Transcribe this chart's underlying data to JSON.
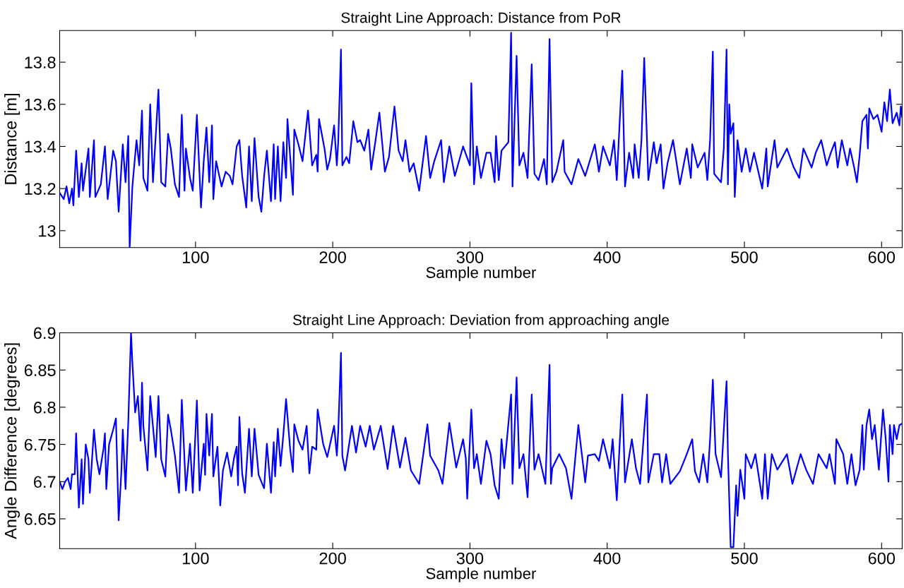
{
  "chart_data": [
    {
      "type": "line",
      "title": "Straight Line Approach: Distance from PoR",
      "xlabel": "Sample number",
      "ylabel": "Distance [m]",
      "xlim": [
        1,
        615
      ],
      "ylim": [
        12.92,
        13.95
      ],
      "xticks": [
        100,
        200,
        300,
        400,
        500,
        600
      ],
      "yticks": [
        13,
        13.2,
        13.4,
        13.6,
        13.8
      ],
      "grid": false,
      "marker": "none",
      "line_style": "solid",
      "series": [
        {
          "color": "#0000ff",
          "x": [
            1,
            4,
            6,
            8,
            10,
            11,
            13,
            15,
            17,
            18,
            22,
            23,
            26,
            27,
            31,
            34,
            36,
            40,
            42,
            44,
            47,
            49,
            51,
            52,
            54,
            57,
            59,
            61,
            62,
            65,
            67,
            69,
            73,
            75,
            78,
            80,
            82,
            85,
            88,
            90,
            92,
            93,
            96,
            98,
            101,
            104,
            106,
            108,
            110,
            112,
            113,
            115,
            119,
            122,
            125,
            127,
            130,
            132,
            134,
            137,
            139,
            141,
            143,
            146,
            148,
            150,
            152,
            155,
            157,
            158,
            160,
            162,
            164,
            166,
            167,
            169,
            171,
            172,
            175,
            178,
            182,
            185,
            188,
            189,
            190,
            194,
            196,
            198,
            201,
            203,
            204,
            206,
            207,
            210,
            212,
            215,
            218,
            220,
            223,
            226,
            228,
            231,
            234,
            236,
            238,
            241,
            245,
            248,
            251,
            253,
            256,
            259,
            263,
            268,
            271,
            274,
            279,
            281,
            285,
            289,
            295,
            300,
            301,
            303,
            305,
            308,
            312,
            315,
            318,
            319,
            321,
            323,
            328,
            330,
            331,
            334,
            336,
            339,
            342,
            345,
            347,
            350,
            354,
            356,
            358,
            360,
            363,
            368,
            369,
            374,
            379,
            384,
            391,
            394,
            397,
            402,
            405,
            407,
            411,
            413,
            416,
            419,
            420,
            423,
            425,
            427,
            430,
            434,
            436,
            439,
            441,
            444,
            448,
            453,
            458,
            461,
            462,
            466,
            471,
            473,
            475,
            477,
            478,
            483,
            485,
            487,
            488,
            489,
            490,
            492,
            493,
            495,
            498,
            501,
            504,
            507,
            513,
            516,
            517,
            522,
            524,
            531,
            536,
            540,
            543,
            549,
            552,
            556,
            560,
            563,
            566,
            568,
            571,
            575,
            577,
            580,
            582,
            584,
            586,
            589,
            590,
            591,
            594,
            597,
            600,
            602,
            604,
            606,
            608,
            611,
            613,
            614,
            615
          ],
          "values": [
            13.18,
            13.15,
            13.21,
            13.13,
            13.2,
            13.12,
            13.38,
            13.16,
            13.32,
            13.19,
            13.39,
            13.16,
            13.43,
            13.16,
            13.22,
            13.4,
            13.15,
            13.38,
            13.33,
            13.09,
            13.41,
            13.23,
            13.45,
            12.92,
            13.21,
            13.43,
            13.31,
            13.57,
            13.25,
            13.19,
            13.6,
            13.23,
            13.67,
            13.23,
            13.21,
            13.46,
            13.39,
            13.22,
            13.16,
            13.55,
            13.19,
            13.39,
            13.25,
            13.19,
            13.55,
            13.11,
            13.33,
            13.49,
            13.23,
            13.5,
            13.15,
            13.33,
            13.21,
            13.28,
            13.26,
            13.22,
            13.4,
            13.43,
            13.26,
            13.11,
            13.4,
            13.14,
            13.44,
            13.16,
            13.09,
            13.26,
            13.38,
            13.14,
            13.41,
            13.15,
            13.4,
            13.14,
            13.42,
            13.25,
            13.53,
            13.35,
            13.17,
            13.48,
            13.41,
            13.33,
            13.57,
            13.31,
            13.36,
            13.28,
            13.53,
            13.39,
            13.29,
            13.34,
            13.5,
            13.31,
            13.42,
            13.86,
            13.31,
            13.35,
            13.32,
            13.52,
            13.42,
            13.43,
            13.38,
            13.48,
            13.29,
            13.42,
            13.56,
            13.42,
            13.28,
            13.35,
            13.59,
            13.38,
            13.33,
            13.43,
            13.28,
            13.32,
            13.19,
            13.45,
            13.25,
            13.33,
            13.43,
            13.23,
            13.4,
            13.26,
            13.4,
            13.31,
            13.7,
            13.22,
            13.4,
            13.25,
            13.37,
            13.37,
            13.23,
            13.45,
            13.24,
            13.38,
            13.42,
            13.94,
            13.21,
            13.83,
            13.31,
            13.37,
            13.25,
            13.79,
            13.27,
            13.24,
            13.34,
            13.22,
            13.91,
            13.23,
            13.28,
            13.43,
            13.28,
            13.22,
            13.34,
            13.26,
            13.41,
            13.28,
            13.4,
            13.31,
            13.43,
            13.24,
            13.76,
            13.21,
            13.37,
            13.25,
            13.41,
            13.25,
            13.43,
            13.82,
            13.24,
            13.42,
            13.32,
            13.41,
            13.2,
            13.32,
            13.43,
            13.22,
            13.39,
            13.25,
            13.41,
            13.3,
            13.37,
            13.24,
            13.43,
            13.85,
            13.27,
            13.23,
            13.39,
            13.86,
            13.22,
            13.6,
            13.46,
            13.51,
            13.16,
            13.43,
            13.28,
            13.39,
            13.28,
            13.37,
            13.2,
            13.39,
            13.21,
            13.43,
            13.3,
            13.39,
            13.3,
            13.25,
            13.39,
            13.3,
            13.37,
            13.43,
            13.31,
            13.37,
            13.42,
            13.3,
            13.43,
            13.31,
            13.39,
            13.3,
            13.23,
            13.36,
            13.52,
            13.55,
            13.39,
            13.58,
            13.53,
            13.55,
            13.47,
            13.61,
            13.52,
            13.67,
            13.51,
            13.56,
            13.5,
            13.59,
            13.54
          ]
        }
      ]
    },
    {
      "type": "line",
      "title": "Straight Line Approach: Deviation from approaching angle",
      "xlabel": "Sample number",
      "ylabel": "Angle Difference [degrees]",
      "xlim": [
        1,
        615
      ],
      "ylim": [
        6.61,
        6.9
      ],
      "xticks": [
        100,
        200,
        300,
        400,
        500,
        600
      ],
      "yticks": [
        6.65,
        6.7,
        6.75,
        6.8,
        6.85,
        6.9
      ],
      "grid": false,
      "marker": "none",
      "line_style": "solid",
      "series": [
        {
          "color": "#0000ff",
          "x": [
            1,
            3,
            5,
            7,
            9,
            10,
            12,
            13,
            15,
            17,
            18,
            20,
            22,
            23,
            26,
            28,
            30,
            33,
            34,
            35,
            37,
            40,
            42,
            44,
            46,
            47,
            49,
            51,
            53,
            54,
            56,
            58,
            60,
            61,
            62,
            65,
            67,
            71,
            73,
            75,
            78,
            80,
            82,
            85,
            88,
            90,
            93,
            96,
            98,
            101,
            103,
            106,
            107,
            108,
            110,
            112,
            113,
            116,
            118,
            120,
            123,
            126,
            128,
            130,
            131,
            132,
            134,
            136,
            139,
            141,
            143,
            146,
            150,
            152,
            155,
            157,
            158,
            160,
            162,
            164,
            166,
            169,
            171,
            172,
            175,
            178,
            181,
            183,
            185,
            188,
            189,
            193,
            196,
            201,
            203,
            204,
            206,
            207,
            209,
            214,
            217,
            220,
            224,
            227,
            230,
            235,
            240,
            244,
            249,
            253,
            257,
            263,
            269,
            271,
            277,
            280,
            285,
            290,
            295,
            297,
            298,
            300,
            301,
            303,
            305,
            308,
            312,
            315,
            318,
            321,
            323,
            325,
            330,
            331,
            334,
            336,
            339,
            342,
            345,
            347,
            350,
            355,
            358,
            359,
            360,
            365,
            370,
            374,
            379,
            384,
            386,
            391,
            394,
            397,
            402,
            404,
            407,
            411,
            413,
            418,
            421,
            424,
            429,
            430,
            434,
            438,
            440,
            443,
            446,
            453,
            458,
            462,
            464,
            467,
            470,
            473,
            475,
            477,
            479,
            483,
            484,
            487,
            488,
            490,
            492,
            494,
            495,
            497,
            500,
            501,
            505,
            508,
            513,
            515,
            517,
            520,
            524,
            531,
            535,
            541,
            545,
            550,
            554,
            560,
            562,
            566,
            567,
            572,
            575,
            578,
            581,
            584,
            586,
            587,
            589,
            591,
            593,
            595,
            598,
            601,
            603,
            605,
            606,
            608,
            609,
            611,
            613,
            615
          ],
          "values": [
            6.7,
            6.69,
            6.7,
            6.705,
            6.69,
            6.71,
            6.71,
            6.765,
            6.665,
            6.73,
            6.67,
            6.75,
            6.73,
            6.685,
            6.77,
            6.73,
            6.71,
            6.745,
            6.765,
            6.69,
            6.75,
            6.77,
            6.785,
            6.648,
            6.715,
            6.77,
            6.69,
            6.78,
            6.9,
            6.86,
            6.793,
            6.815,
            6.755,
            6.833,
            6.775,
            6.715,
            6.815,
            6.733,
            6.815,
            6.73,
            6.707,
            6.79,
            6.77,
            6.735,
            6.685,
            6.81,
            6.688,
            6.751,
            6.685,
            6.809,
            6.688,
            6.751,
            6.709,
            6.791,
            6.735,
            6.791,
            6.707,
            6.747,
            6.668,
            6.715,
            6.739,
            6.707,
            6.731,
            6.747,
            6.695,
            6.787,
            6.711,
            6.685,
            6.771,
            6.707,
            6.771,
            6.709,
            6.691,
            6.751,
            6.685,
            6.753,
            6.707,
            6.771,
            6.721,
            6.763,
            6.811,
            6.743,
            6.713,
            6.777,
            6.755,
            6.743,
            6.775,
            6.711,
            6.747,
            6.743,
            6.797,
            6.751,
            6.733,
            6.775,
            6.735,
            6.767,
            6.873,
            6.735,
            6.715,
            6.775,
            6.739,
            6.775,
            6.747,
            6.775,
            6.743,
            6.775,
            6.717,
            6.775,
            6.719,
            6.759,
            6.715,
            6.697,
            6.777,
            6.735,
            6.715,
            6.697,
            6.779,
            6.719,
            6.757,
            6.731,
            6.677,
            6.757,
            6.797,
            6.718,
            6.737,
            6.697,
            6.755,
            6.737,
            6.695,
            6.677,
            6.757,
            6.718,
            6.817,
            6.697,
            6.84,
            6.718,
            6.737,
            6.679,
            6.817,
            6.716,
            6.737,
            6.697,
            6.857,
            6.697,
            6.718,
            6.737,
            6.718,
            6.677,
            6.776,
            6.699,
            6.735,
            6.737,
            6.728,
            6.757,
            6.718,
            6.757,
            6.675,
            6.817,
            6.699,
            6.757,
            6.718,
            6.697,
            6.817,
            6.699,
            6.737,
            6.737,
            6.699,
            6.737,
            6.697,
            6.714,
            6.737,
            6.757,
            6.714,
            6.699,
            6.737,
            6.699,
            6.757,
            6.837,
            6.737,
            6.706,
            6.737,
            6.835,
            6.737,
            6.612,
            6.612,
            6.695,
            6.654,
            6.716,
            6.677,
            6.737,
            6.718,
            6.737,
            6.677,
            6.737,
            6.677,
            6.737,
            6.716,
            6.737,
            6.697,
            6.737,
            6.716,
            6.697,
            6.737,
            6.718,
            6.737,
            6.697,
            6.757,
            6.737,
            6.697,
            6.737,
            6.695,
            6.716,
            6.776,
            6.716,
            6.776,
            6.797,
            6.757,
            6.776,
            6.716,
            6.797,
            6.757,
            6.7,
            6.776,
            6.737,
            6.776,
            6.757,
            6.776,
            6.778
          ]
        }
      ]
    }
  ]
}
